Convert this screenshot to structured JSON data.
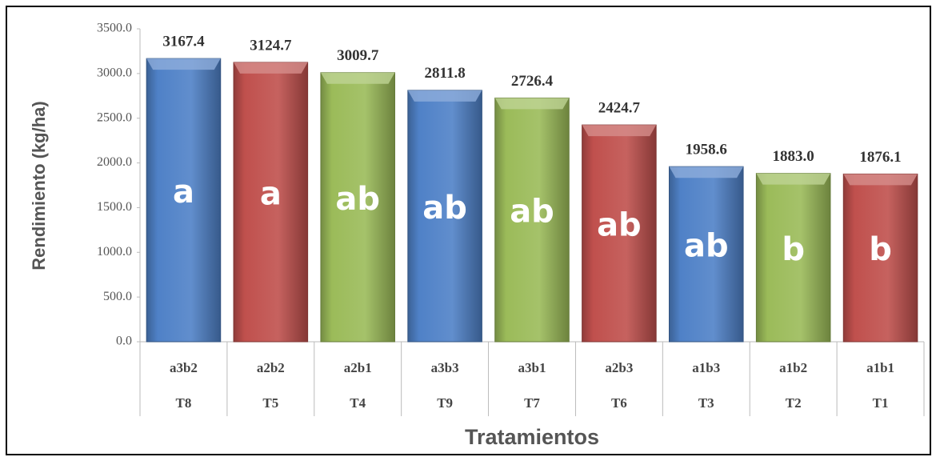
{
  "chart_data": {
    "type": "bar",
    "y_label": "Rendimiento (kg/ha)",
    "x_label": "Tratamientos",
    "categories": [
      "a3b2",
      "a2b2",
      "a2b1",
      "a3b3",
      "a3b1",
      "a2b3",
      "a1b3",
      "a1b2",
      "a1b1"
    ],
    "subcategories": [
      "T8",
      "T5",
      "T4",
      "T9",
      "T7",
      "T6",
      "T3",
      "T2",
      "T1"
    ],
    "values": [
      3167.4,
      3124.7,
      3009.7,
      2811.8,
      2726.4,
      2424.7,
      1958.6,
      1883.0,
      1876.1
    ],
    "value_labels": [
      "3167.4",
      "3124.7",
      "3009.7",
      "2811.8",
      "2726.4",
      "2424.7",
      "1958.6",
      "1883.0",
      "1876.1"
    ],
    "annotations": [
      "a",
      "a",
      "ab",
      "ab",
      "ab",
      "ab",
      "ab",
      "b",
      "b"
    ],
    "colors": [
      "#4f81c7",
      "#c0504d",
      "#9bbb59",
      "#4f81c7",
      "#9bbb59",
      "#c0504d",
      "#4f81c7",
      "#9bbb59",
      "#c0504d"
    ],
    "ylim": [
      0,
      3500
    ],
    "yticks": [
      {
        "value": 0,
        "label": "0.0"
      },
      {
        "value": 500,
        "label": "500.0"
      },
      {
        "value": 1000,
        "label": "1000.0"
      },
      {
        "value": 1500,
        "label": "1500.0"
      },
      {
        "value": 2000,
        "label": "2000.0"
      },
      {
        "value": 2500,
        "label": "2500.0"
      },
      {
        "value": 3000,
        "label": "3000.0"
      },
      {
        "value": 3500,
        "label": "3500.0"
      }
    ],
    "grid": false
  }
}
